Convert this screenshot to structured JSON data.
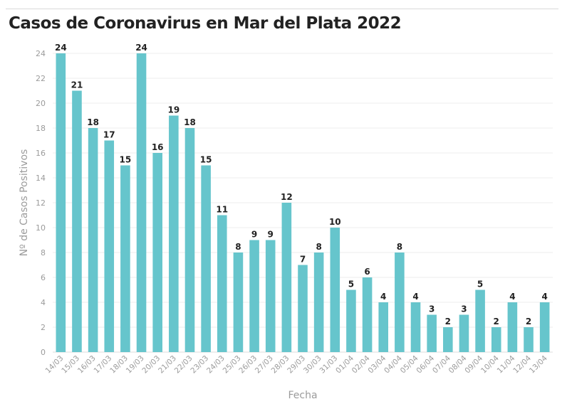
{
  "chart_data": {
    "type": "bar",
    "title": "Casos de Coronavirus en Mar del Plata 2022",
    "xlabel": "Fecha",
    "ylabel": "Nº de Casos Positivos",
    "ylim": [
      0,
      24
    ],
    "yticks": [
      0,
      2,
      4,
      6,
      8,
      10,
      12,
      14,
      16,
      18,
      20,
      22,
      24
    ],
    "grid": true,
    "color": "#66c5cc",
    "categories": [
      "14/03",
      "15/03",
      "16/03",
      "17/03",
      "18/03",
      "19/03",
      "20/03",
      "21/03",
      "22/03",
      "23/03",
      "24/03",
      "25/03",
      "26/03",
      "27/03",
      "28/03",
      "29/03",
      "30/03",
      "31/03",
      "01/04",
      "02/04",
      "03/04",
      "04/04",
      "05/04",
      "06/04",
      "07/04",
      "08/04",
      "09/04",
      "10/04",
      "11/04",
      "12/04",
      "13/04"
    ],
    "values": [
      24,
      21,
      18,
      17,
      15,
      24,
      16,
      19,
      18,
      15,
      11,
      8,
      9,
      9,
      12,
      7,
      8,
      10,
      5,
      6,
      4,
      8,
      4,
      3,
      2,
      3,
      5,
      2,
      4,
      2,
      4
    ]
  }
}
